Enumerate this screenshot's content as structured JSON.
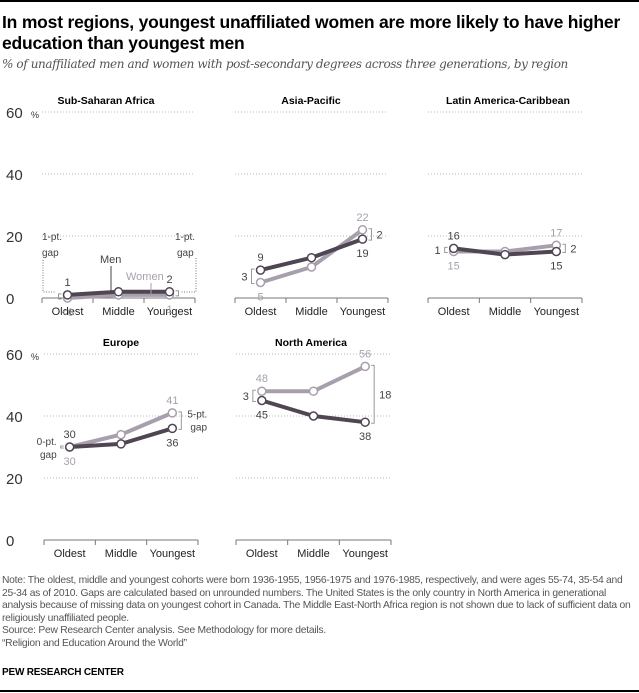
{
  "header": {
    "title": "In most regions, youngest unaffiliated women are more likely to have higher education than youngest men",
    "subtitle": "% of unaffiliated men and women with post-secondary degrees across three generations, by region"
  },
  "footer": {
    "note": "Note: The oldest, middle and youngest cohorts were born 1936-1955, 1956-1975 and 1976-1985,  respectively, and were ages 55-74, 35-54 and 25-34 as of 2010. Gaps are calculated based on unrounded numbers. The United States is the only country in North America in generational analysis because of missing data on youngest cohort in Canada. The Middle East-North Africa region is not shown due to lack of sufficient data on religiously unaffiliated people.",
    "source": "Source: Pew Research Center analysis. See Methodology for more details.",
    "report": "“Religion and Education Around the World”",
    "brand": "PEW RESEARCH CENTER"
  },
  "colors": {
    "men": "#4f4553",
    "women": "#a89fac",
    "grid": "#bbbbbb",
    "axis": "#777777",
    "label": "#444444"
  },
  "chart_data": [
    {
      "type": "line",
      "title": "Sub-Saharan Africa",
      "categories": [
        "Oldest",
        "Middle",
        "Youngest"
      ],
      "ylim": [
        0,
        60
      ],
      "yticks": [
        0,
        20,
        40,
        60
      ],
      "ytick_labels": [
        "0",
        "20",
        "40",
        "60"
      ],
      "y_unit": "%",
      "show_yaxis_labels": true,
      "series": [
        {
          "name": "Men",
          "values": [
            1,
            2,
            2
          ],
          "labels": [
            "1",
            "",
            "2"
          ]
        },
        {
          "name": "Women",
          "values": [
            0,
            1,
            1
          ],
          "labels": [
            "<0",
            "",
            "1"
          ]
        }
      ],
      "series_labels": {
        "men": "Men",
        "women": "Women"
      },
      "gap_labels": {
        "oldest": "1-pt. gap",
        "youngest": "1-pt. gap"
      }
    },
    {
      "type": "line",
      "title": "Asia-Pacific",
      "categories": [
        "Oldest",
        "Middle",
        "Youngest"
      ],
      "ylim": [
        0,
        60
      ],
      "yticks": [
        0,
        20,
        40,
        60
      ],
      "show_yaxis_labels": false,
      "series": [
        {
          "name": "Men",
          "values": [
            9,
            13,
            19
          ],
          "labels": [
            "9",
            "",
            "19"
          ]
        },
        {
          "name": "Women",
          "values": [
            5,
            10,
            22
          ],
          "labels": [
            "5",
            "",
            "22"
          ]
        }
      ],
      "gap_labels": {
        "oldest": "3",
        "youngest": "2"
      }
    },
    {
      "type": "line",
      "title": "Latin America-Caribbean",
      "categories": [
        "Oldest",
        "Middle",
        "Youngest"
      ],
      "ylim": [
        0,
        60
      ],
      "yticks": [
        0,
        20,
        40,
        60
      ],
      "show_yaxis_labels": false,
      "series": [
        {
          "name": "Men",
          "values": [
            16,
            14,
            15
          ],
          "labels": [
            "16",
            "",
            "15"
          ]
        },
        {
          "name": "Women",
          "values": [
            15,
            15,
            17
          ],
          "labels": [
            "15",
            "",
            "17"
          ]
        }
      ],
      "gap_labels": {
        "oldest": "1",
        "youngest": "2"
      }
    },
    {
      "type": "line",
      "title": "Europe",
      "categories": [
        "Oldest",
        "Middle",
        "Youngest"
      ],
      "ylim": [
        0,
        60
      ],
      "yticks": [
        0,
        20,
        40,
        60
      ],
      "ytick_labels": [
        "0",
        "20",
        "40",
        "60"
      ],
      "y_unit": "%",
      "show_yaxis_labels": true,
      "series": [
        {
          "name": "Men",
          "values": [
            30,
            31,
            36
          ],
          "labels": [
            "30",
            "",
            "36"
          ]
        },
        {
          "name": "Women",
          "values": [
            30,
            34,
            41
          ],
          "labels": [
            "30",
            "",
            "41"
          ]
        }
      ],
      "gap_labels": {
        "oldest": "0-pt. gap",
        "youngest": "5-pt. gap"
      }
    },
    {
      "type": "line",
      "title": "North America",
      "categories": [
        "Oldest",
        "Middle",
        "Youngest"
      ],
      "ylim": [
        0,
        60
      ],
      "yticks": [
        0,
        20,
        40,
        60
      ],
      "show_yaxis_labels": false,
      "series": [
        {
          "name": "Men",
          "values": [
            45,
            40,
            38
          ],
          "labels": [
            "45",
            "",
            "38"
          ]
        },
        {
          "name": "Women",
          "values": [
            48,
            48,
            56
          ],
          "labels": [
            "48",
            "",
            "56"
          ]
        }
      ],
      "gap_labels": {
        "oldest": "3",
        "youngest": "18"
      }
    }
  ]
}
